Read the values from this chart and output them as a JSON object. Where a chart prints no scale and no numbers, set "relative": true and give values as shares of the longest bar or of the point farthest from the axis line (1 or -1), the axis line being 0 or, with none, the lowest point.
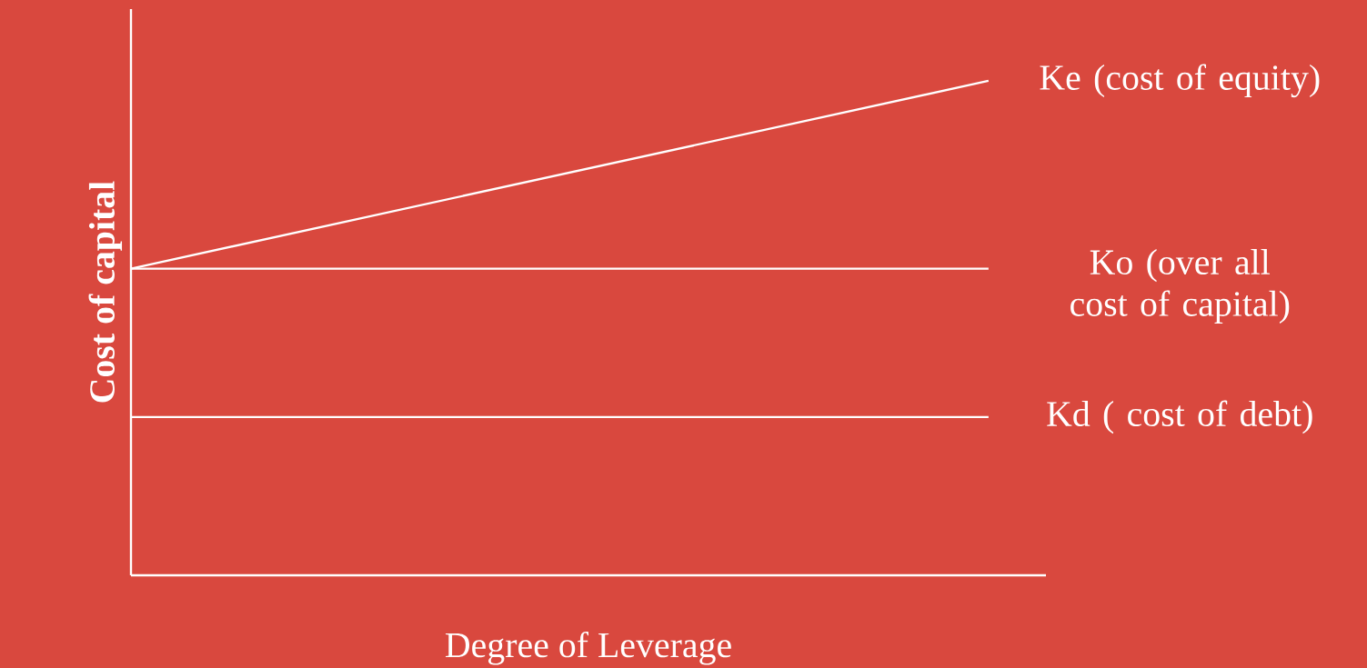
{
  "chart_data": {
    "type": "line",
    "relative": true,
    "xlabel": "Degree of Leverage",
    "ylabel": "Cost of capital",
    "categories": [
      null,
      null
    ],
    "series": [
      {
        "name": "Ke (cost of equity)",
        "color": "#ffffff",
        "values": [
          0.62,
          1
        ]
      },
      {
        "name": "Ko (over all cost of capital)",
        "color": "#ffffff",
        "values": [
          0.62,
          0.62
        ]
      },
      {
        "name": "Kd ( cost of debt)",
        "color": "#ffffff",
        "values": [
          0.32,
          0.32
        ]
      }
    ],
    "marker": "none",
    "line_style": "solid"
  }
}
